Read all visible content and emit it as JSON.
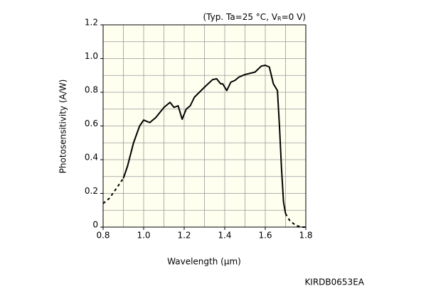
{
  "chart_data": {
    "type": "line",
    "annotation": [
      "(Typ. Ta=25 °C, V",
      "R",
      "=0 V)"
    ],
    "xlabel": "Wavelength (μm)",
    "ylabel": "Photosensitivity (A/W)",
    "footer": "KIRDB0653EA",
    "xlim": [
      0.8,
      1.8
    ],
    "ylim": [
      0,
      1.2
    ],
    "xticks": [
      0.8,
      {
        "value": 1,
        "label": "1.0"
      },
      1.2,
      1.4,
      1.6,
      1.8
    ],
    "yticks": [
      0,
      0.2,
      0.4,
      0.6,
      0.8,
      {
        "value": 1,
        "label": "1.0"
      },
      1.2
    ],
    "xgrid": [
      0.8,
      0.9,
      1,
      1.1,
      1.2,
      1.3,
      1.4,
      1.5,
      1.6,
      1.7,
      1.8
    ],
    "ygrid": [
      0,
      0.1,
      0.2,
      0.3,
      0.4,
      0.5,
      0.6,
      0.7,
      0.8,
      0.9,
      1,
      1.1,
      1.2
    ],
    "grid": true,
    "series": [
      {
        "color": "#000000",
        "style": "dashed",
        "x": [
          0.8,
          0.83,
          0.86,
          0.9
        ],
        "values": [
          0.14,
          0.17,
          0.22,
          0.29
        ]
      },
      {
        "color": "#000000",
        "style": "solid",
        "x": [
          0.9,
          0.92,
          0.95,
          0.98,
          1.0,
          1.03,
          1.06,
          1.1,
          1.13,
          1.15,
          1.17,
          1.19,
          1.21,
          1.23,
          1.25,
          1.3,
          1.34,
          1.36,
          1.38,
          1.39,
          1.41,
          1.43,
          1.45,
          1.47,
          1.5,
          1.55,
          1.58,
          1.6,
          1.62,
          1.64,
          1.66,
          1.67,
          1.68,
          1.69,
          1.7
        ],
        "values": [
          0.29,
          0.36,
          0.5,
          0.6,
          0.635,
          0.62,
          0.65,
          0.71,
          0.74,
          0.71,
          0.72,
          0.64,
          0.7,
          0.72,
          0.77,
          0.83,
          0.875,
          0.88,
          0.85,
          0.85,
          0.81,
          0.86,
          0.87,
          0.89,
          0.905,
          0.92,
          0.955,
          0.96,
          0.95,
          0.85,
          0.81,
          0.6,
          0.35,
          0.15,
          0.08
        ]
      },
      {
        "color": "#000000",
        "style": "dashed",
        "x": [
          1.7,
          1.72,
          1.75,
          1.78,
          1.8
        ],
        "values": [
          0.08,
          0.04,
          0.01,
          0,
          0
        ]
      }
    ]
  }
}
